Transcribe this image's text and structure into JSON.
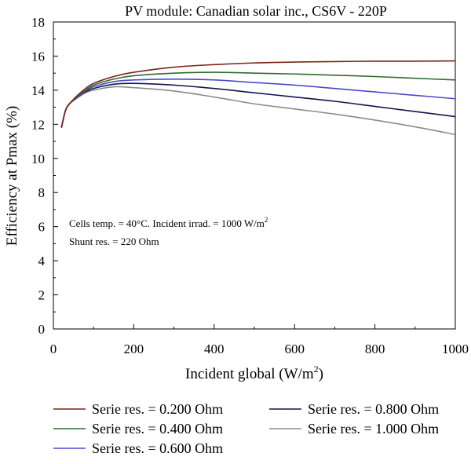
{
  "chart_data": {
    "type": "line",
    "title": "PV module: Canadian solar inc., CS6V - 220P",
    "xlabel": "Incident global (W/m",
    "xlabel_sup": "2",
    "xlabel_suffix": ")",
    "ylabel": "Efficiency at Pmax (%)",
    "xlim": [
      0,
      1000
    ],
    "ylim": [
      0,
      18
    ],
    "xticks": [
      0,
      200,
      400,
      600,
      800,
      1000
    ],
    "yticks": [
      0,
      2,
      4,
      6,
      8,
      10,
      12,
      14,
      16,
      18
    ],
    "grid": false,
    "legend_position": "bottom",
    "annotations": {
      "line1": "Cells temp. = 40°C. Incident irrad. = 1000 W/m",
      "line1_sup": "2",
      "line2": "Shunt res. = 220 Ohm"
    },
    "series": [
      {
        "name": "Serie res. = 0.200 Ohm",
        "color": "#7a2418",
        "x": [
          20,
          30,
          40,
          60,
          80,
          100,
          150,
          200,
          300,
          400,
          500,
          600,
          700,
          800,
          900,
          1000
        ],
        "y": [
          11.8,
          12.8,
          13.2,
          13.7,
          14.1,
          14.4,
          14.8,
          15.05,
          15.35,
          15.5,
          15.6,
          15.65,
          15.68,
          15.7,
          15.7,
          15.72
        ]
      },
      {
        "name": "Serie res. = 0.400 Ohm",
        "color": "#2e6b2e",
        "x": [
          20,
          30,
          40,
          60,
          80,
          100,
          150,
          200,
          300,
          400,
          500,
          600,
          700,
          800,
          900,
          1000
        ],
        "y": [
          11.8,
          12.8,
          13.2,
          13.65,
          14.0,
          14.3,
          14.65,
          14.85,
          15.0,
          15.05,
          15.0,
          14.95,
          14.88,
          14.8,
          14.7,
          14.6
        ]
      },
      {
        "name": "Serie res. = 0.600 Ohm",
        "color": "#4a4acd",
        "x": [
          20,
          30,
          40,
          60,
          80,
          100,
          150,
          200,
          300,
          400,
          500,
          600,
          700,
          800,
          900,
          1000
        ],
        "y": [
          11.8,
          12.8,
          13.2,
          13.6,
          13.95,
          14.2,
          14.5,
          14.6,
          14.65,
          14.6,
          14.45,
          14.3,
          14.1,
          13.9,
          13.7,
          13.5
        ]
      },
      {
        "name": "Serie res. = 0.800 Ohm",
        "color": "#141450",
        "x": [
          20,
          30,
          40,
          60,
          80,
          100,
          150,
          200,
          300,
          400,
          500,
          600,
          700,
          800,
          900,
          1000
        ],
        "y": [
          11.8,
          12.8,
          13.2,
          13.6,
          13.9,
          14.1,
          14.35,
          14.4,
          14.3,
          14.1,
          13.85,
          13.6,
          13.35,
          13.05,
          12.75,
          12.45
        ]
      },
      {
        "name": "Serie res. = 1.000 Ohm",
        "color": "#8a8a8a",
        "x": [
          20,
          30,
          40,
          60,
          80,
          100,
          150,
          200,
          300,
          400,
          500,
          600,
          700,
          800,
          900,
          1000
        ],
        "y": [
          11.8,
          12.8,
          13.2,
          13.55,
          13.85,
          14.0,
          14.2,
          14.15,
          13.95,
          13.6,
          13.2,
          12.9,
          12.6,
          12.25,
          11.85,
          11.4
        ]
      }
    ]
  }
}
